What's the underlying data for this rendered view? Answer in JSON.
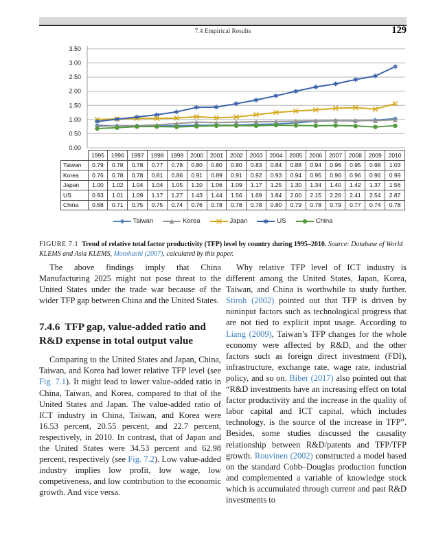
{
  "header": {
    "section": "7.4 Empirical Results",
    "page_number": "129"
  },
  "chart_data": {
    "type": "line",
    "title": "",
    "xlabel": "",
    "ylabel": "",
    "x": [
      1995,
      1996,
      1997,
      1998,
      1999,
      2000,
      2001,
      2002,
      2003,
      2004,
      2005,
      2006,
      2007,
      2008,
      2009,
      2010
    ],
    "ylim": [
      0,
      3.5
    ],
    "ytick_step": 0.5,
    "ytick_format": "0.00",
    "grid": true,
    "legend_position": "bottom",
    "series": [
      {
        "name": "Taiwan",
        "color": "#4f81bd",
        "marker": "diamond",
        "values": [
          0.79,
          0.78,
          0.78,
          0.77,
          0.78,
          0.8,
          0.8,
          0.8,
          0.83,
          0.84,
          0.88,
          0.94,
          0.96,
          0.95,
          0.98,
          1.03
        ]
      },
      {
        "name": "Korea",
        "color": "#939393",
        "marker": "triangle",
        "values": [
          0.76,
          0.78,
          0.78,
          0.81,
          0.86,
          0.91,
          0.89,
          0.91,
          0.92,
          0.93,
          0.94,
          0.95,
          0.96,
          0.96,
          0.96,
          0.99
        ]
      },
      {
        "name": "Japan",
        "color": "#d3a81c",
        "marker": "x",
        "values": [
          1.0,
          1.02,
          1.04,
          1.04,
          1.05,
          1.1,
          1.06,
          1.09,
          1.17,
          1.25,
          1.3,
          1.34,
          1.4,
          1.42,
          1.37,
          1.56
        ]
      },
      {
        "name": "US",
        "color": "#3b61ab",
        "marker": "asterisk",
        "values": [
          0.93,
          1.01,
          1.09,
          1.17,
          1.27,
          1.43,
          1.44,
          1.56,
          1.69,
          1.84,
          2.0,
          2.15,
          2.26,
          2.41,
          2.54,
          2.87
        ]
      },
      {
        "name": "China",
        "color": "#539a3d",
        "marker": "circle",
        "values": [
          0.68,
          0.71,
          0.75,
          0.75,
          0.74,
          0.76,
          0.78,
          0.78,
          0.78,
          0.8,
          0.79,
          0.78,
          0.79,
          0.77,
          0.74,
          0.78
        ]
      }
    ]
  },
  "table": {
    "columns": [
      "1995",
      "1996",
      "1997",
      "1998",
      "1999",
      "2000",
      "2001",
      "2002",
      "2003",
      "2004",
      "2005",
      "2006",
      "2007",
      "2008",
      "2009",
      "2010"
    ],
    "rows": [
      {
        "label": "Taiwan",
        "values": [
          "0.79",
          "0.78",
          "0.78",
          "0.77",
          "0.78",
          "0.80",
          "0.80",
          "0.80",
          "0.83",
          "0.84",
          "0.88",
          "0.94",
          "0.96",
          "0.95",
          "0.98",
          "1.03"
        ]
      },
      {
        "label": "Korea",
        "values": [
          "0.76",
          "0.78",
          "0.78",
          "0.81",
          "0.86",
          "0.91",
          "0.89",
          "0.91",
          "0.92",
          "0.93",
          "0.94",
          "0.95",
          "0.96",
          "0.96",
          "0.96",
          "0.99"
        ]
      },
      {
        "label": "Japan",
        "values": [
          "1.00",
          "1.02",
          "1.04",
          "1.04",
          "1.05",
          "1.10",
          "1.06",
          "1.09",
          "1.17",
          "1.25",
          "1.30",
          "1.34",
          "1.40",
          "1.42",
          "1.37",
          "1.56"
        ]
      },
      {
        "label": "US",
        "values": [
          "0.93",
          "1.01",
          "1.09",
          "1.17",
          "1.27",
          "1.43",
          "1.44",
          "1.56",
          "1.69",
          "1.84",
          "2.00",
          "2.15",
          "2.26",
          "2.41",
          "2.54",
          "2.87"
        ]
      },
      {
        "label": "China",
        "values": [
          "0.68",
          "0.71",
          "0.75",
          "0.75",
          "0.74",
          "0.76",
          "0.78",
          "0.78",
          "0.78",
          "0.80",
          "0.79",
          "0.78",
          "0.79",
          "0.77",
          "0.74",
          "0.78"
        ]
      }
    ]
  },
  "figure": {
    "label": "FIGURE 7.1",
    "caption_bold": "Trend of relative total factor productivity (TFP) level by country during 1995–2010.",
    "source_segments": [
      {
        "t": " Source: Database of World KLEMS and Asia KLEMS, "
      },
      {
        "t": "Motohashi (2007)",
        "link": true
      },
      {
        "t": ", calculated by this paper."
      }
    ]
  },
  "body": {
    "left_para1": {
      "segments": [
        {
          "t": "The above findings imply that China Manufacturing 2025 might not pose threat to the United States under the trade war because of the wider TFP gap between China and the United States."
        }
      ]
    },
    "heading": {
      "number": "7.4.6",
      "title": "TFP gap, value-added ratio and R&D expense in total output value"
    },
    "left_para2": {
      "segments": [
        {
          "t": "Comparing to the United States and Japan, China, Taiwan, and Korea had lower relative TFP level (see "
        },
        {
          "t": "Fig. 7.1",
          "link": true
        },
        {
          "t": "). It might lead to lower value-added ratio in China, Taiwan, and Korea, compared to that of the United States and Japan. The value-added ratio of ICT industry in China, Taiwan, and Korea were 16.53 percent, 20.55 percent, and 22.7 percent, respectively, in 2010. In contrast, that of Japan and the United States were 34.53 percent and 62.98 percent, respectively (see "
        },
        {
          "t": "Fig. 7.2",
          "link": true
        },
        {
          "t": "). Low value-added industry implies low profit, low wage, low competiveness, and low contribution to the economic growth. And vice versa."
        }
      ]
    },
    "right_para": {
      "segments": [
        {
          "t": "Why relative TFP level of ICT industry is different among the United States, Japan, Korea, Taiwan, and China is worthwhile to study further. "
        },
        {
          "t": "Stiroh (2002)",
          "link": true
        },
        {
          "t": " pointed out that TFP is driven by noninput factors such as technological progress that are not tied to explicit input usage. According to "
        },
        {
          "t": "Liang (2009)",
          "link": true
        },
        {
          "t": ", Taiwan’s TFP changes for the whole economy were affected by R&D, and the other factors such as foreign direct investment (FDI), infrastructure, exchange rate, wage rate, industrial policy, and so on. "
        },
        {
          "t": "Biber (2017)",
          "link": true
        },
        {
          "t": " also pointed out that “R&D investments have an increasing effect on total factor productivity and the increase in the quality of labor capital and ICT capital, which includes technology, is the source of the increase in TFP”. Besides, some studies discussed the causality relationship between R&D/patents and TFP/TFP growth. "
        },
        {
          "t": "Rouvinen (2002)",
          "link": true
        },
        {
          "t": " constructed a model based on the standard Cobb–Douglas production function and complemented a variable of knowledge stock which is accumulated through current and past R&D investments to"
        }
      ]
    }
  }
}
